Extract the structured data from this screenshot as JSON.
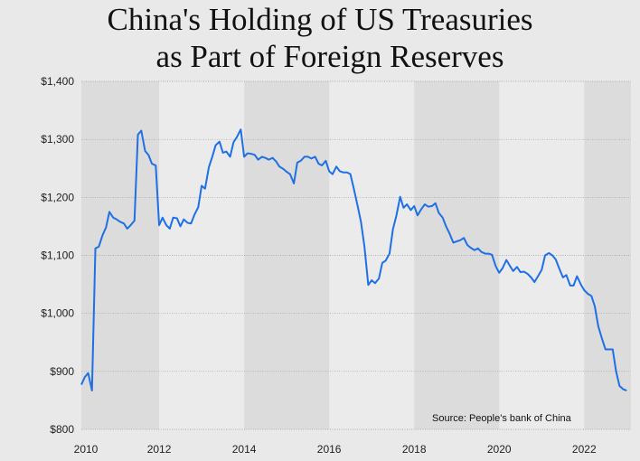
{
  "chart_data": {
    "type": "line",
    "title": [
      "China's Holding of US Treasuries",
      "as Part of Foreign Reserves"
    ],
    "annotation": "Source: People's bank of China",
    "xlim": [
      2010.17,
      2023.1
    ],
    "xticks": [
      2010,
      2012,
      2014,
      2016,
      2018,
      2020,
      2022
    ],
    "ylim": [
      800,
      1400
    ],
    "yticks": [
      {
        "value": 800,
        "label": "$800"
      },
      {
        "value": 900,
        "label": "$900"
      },
      {
        "value": 1000,
        "label": "$1,000"
      },
      {
        "value": 1100,
        "label": "$1,100"
      },
      {
        "value": 1200,
        "label": "$1,200"
      },
      {
        "value": 1300,
        "label": "$1,300"
      },
      {
        "value": 1400,
        "label": "$1,400"
      }
    ],
    "grid": true,
    "x": [
      2010.17,
      2010.25,
      2010.33,
      2010.42,
      2010.5,
      2010.58,
      2010.67,
      2010.75,
      2010.83,
      2010.92,
      2011,
      2011.08,
      2011.17,
      2011.25,
      2011.33,
      2011.42,
      2011.5,
      2011.58,
      2011.67,
      2011.75,
      2011.83,
      2011.92,
      2012,
      2012.08,
      2012.17,
      2012.25,
      2012.33,
      2012.42,
      2012.5,
      2012.58,
      2012.67,
      2012.75,
      2012.83,
      2012.92,
      2013,
      2013.08,
      2013.17,
      2013.25,
      2013.33,
      2013.42,
      2013.5,
      2013.58,
      2013.67,
      2013.75,
      2013.83,
      2013.92,
      2014,
      2014.08,
      2014.17,
      2014.25,
      2014.33,
      2014.42,
      2014.5,
      2014.58,
      2014.67,
      2014.75,
      2014.83,
      2014.92,
      2015,
      2015.08,
      2015.17,
      2015.25,
      2015.33,
      2015.42,
      2015.5,
      2015.58,
      2015.67,
      2015.75,
      2015.83,
      2015.92,
      2016,
      2016.08,
      2016.17,
      2016.25,
      2016.33,
      2016.42,
      2016.5,
      2016.58,
      2016.67,
      2016.75,
      2016.83,
      2016.92,
      2017,
      2017.08,
      2017.17,
      2017.25,
      2017.33,
      2017.42,
      2017.5,
      2017.58,
      2017.67,
      2017.75,
      2017.83,
      2017.92,
      2018,
      2018.08,
      2018.17,
      2018.25,
      2018.33,
      2018.42,
      2018.5,
      2018.58,
      2018.67,
      2018.75,
      2018.83,
      2018.92,
      2019,
      2019.08,
      2019.17,
      2019.25,
      2019.33,
      2019.42,
      2019.5,
      2019.58,
      2019.67,
      2019.75,
      2019.83,
      2019.92,
      2020,
      2020.08,
      2020.17,
      2020.25,
      2020.33,
      2020.42,
      2020.5,
      2020.58,
      2020.67,
      2020.75,
      2020.83,
      2020.92,
      2021,
      2021.08,
      2021.17,
      2021.25,
      2021.33,
      2021.42,
      2021.5,
      2021.58,
      2021.67,
      2021.75,
      2021.83,
      2021.92,
      2022,
      2022.08,
      2022.17,
      2022.25,
      2022.33,
      2022.42,
      2022.5,
      2022.58,
      2022.67,
      2022.75,
      2022.83,
      2022.92,
      2023
    ],
    "series": [
      {
        "color": "#1f6fe5",
        "values": [
          877,
          890,
          897,
          867,
          1112,
          1115,
          1135,
          1148,
          1175,
          1165,
          1162,
          1158,
          1155,
          1146,
          1152,
          1160,
          1308,
          1315,
          1280,
          1273,
          1258,
          1255,
          1152,
          1165,
          1152,
          1146,
          1165,
          1164,
          1150,
          1162,
          1156,
          1155,
          1170,
          1183,
          1220,
          1215,
          1252,
          1270,
          1290,
          1296,
          1277,
          1279,
          1270,
          1295,
          1304,
          1317,
          1270,
          1276,
          1275,
          1273,
          1265,
          1270,
          1268,
          1265,
          1268,
          1262,
          1253,
          1249,
          1244,
          1240,
          1224,
          1260,
          1263,
          1270,
          1270,
          1267,
          1270,
          1258,
          1255,
          1263,
          1245,
          1240,
          1253,
          1245,
          1243,
          1243,
          1240,
          1215,
          1185,
          1157,
          1115,
          1049,
          1057,
          1052,
          1060,
          1087,
          1091,
          1103,
          1145,
          1168,
          1201,
          1182,
          1188,
          1178,
          1185,
          1169,
          1180,
          1188,
          1184,
          1185,
          1190,
          1173,
          1165,
          1150,
          1138,
          1122,
          1124,
          1126,
          1130,
          1118,
          1113,
          1109,
          1112,
          1106,
          1103,
          1103,
          1101,
          1081,
          1070,
          1078,
          1092,
          1082,
          1073,
          1080,
          1071,
          1072,
          1068,
          1062,
          1054,
          1065,
          1075,
          1100,
          1104,
          1100,
          1093,
          1076,
          1062,
          1066,
          1048,
          1048,
          1064,
          1050,
          1040,
          1034,
          1030,
          1012,
          978,
          956,
          938,
          938,
          938,
          900,
          875,
          869,
          867
        ]
      }
    ]
  }
}
